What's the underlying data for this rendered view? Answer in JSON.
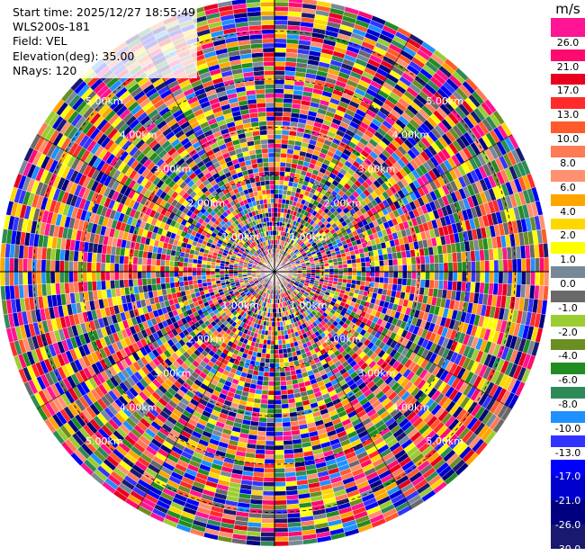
{
  "header": {
    "start_time": "Start time: 2025/12/27 18:55:49",
    "station": "WLS200s-181",
    "field": "Field: VEL",
    "elevation": "Elevation(deg): 35.00",
    "nrays": "NRays: 120"
  },
  "chart_data": {
    "type": "ppi",
    "field": "VEL",
    "unit": "m/s",
    "elevation_deg": 35.0,
    "n_rays": 120,
    "range_rings_km": [
      1.0,
      2.0,
      3.0,
      4.0,
      5.0
    ],
    "range_ring_labels": [
      "1.00km",
      "2.00km",
      "3.00km",
      "4.00km",
      "5.00km"
    ],
    "max_range_km": 5.7,
    "colorbar": {
      "unit_label": "m/s",
      "tick_labels": [
        "26.0",
        "21.0",
        "17.0",
        "13.0",
        "10.0",
        "8.0",
        "6.0",
        "4.0",
        "2.0",
        "1.0",
        "0.0",
        "-1.0",
        "-2.0",
        "-4.0",
        "-6.0",
        "-8.0",
        "-10.0",
        "-13.0",
        "-17.0",
        "-21.0",
        "-26.0",
        "-30.0"
      ],
      "colors": [
        "#ff1493",
        "#ff0a6e",
        "#e8001e",
        "#ff2a2a",
        "#ff5a2a",
        "#ff7a55",
        "#ff9070",
        "#ffa500",
        "#ffd700",
        "#ffff00",
        "#778899",
        "#696969",
        "#9acd32",
        "#6b8e23",
        "#228b22",
        "#2e8b57",
        "#1e90ff",
        "#3333ff",
        "#0000ff",
        "#0000cd",
        "#000080",
        "#191970"
      ]
    }
  }
}
